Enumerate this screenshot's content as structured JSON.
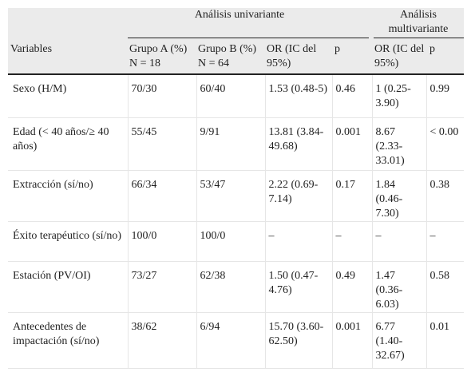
{
  "header": {
    "group_univariate": "Análisis univariante",
    "group_multivariate": "Análisis multivariante",
    "col_variables": "Variables",
    "col_grupo_a": "Grupo A (%) N = 18",
    "col_grupo_b": "Grupo B (%) N = 64",
    "col_or_uni": "OR (IC del 95%)",
    "col_p_uni": "p",
    "col_or_multi": "OR (IC del 95%)",
    "col_p_multi": "p"
  },
  "rows": [
    {
      "variable": "Sexo (H/M)",
      "grupo_a": "70/30",
      "grupo_b": "60/40",
      "or_uni": "1.53 (0.48-5)",
      "p_uni": "0.46",
      "or_multi": "1 (0.25-3.90)",
      "p_multi": "0.99"
    },
    {
      "variable": "Edad (< 40 años/≥ 40 años)",
      "grupo_a": "55/45",
      "grupo_b": "9/91",
      "or_uni": "13.81 (3.84-49.68)",
      "p_uni": "0.001",
      "or_multi": "8.67 (2.33-33.01)",
      "p_multi": "< 0.00"
    },
    {
      "variable": "Extracción (sí/no)",
      "grupo_a": "66/34",
      "grupo_b": "53/47",
      "or_uni": "2.22 (0.69-7.14)",
      "p_uni": "0.17",
      "or_multi": "1.84 (0.46-7.30)",
      "p_multi": "0.38"
    },
    {
      "variable": "Éxito terapéutico (sí/no)",
      "grupo_a": "100/0",
      "grupo_b": "100/0",
      "or_uni": "–",
      "p_uni": "–",
      "or_multi": "–",
      "p_multi": "–"
    },
    {
      "variable": "Estación (PV/OI)",
      "grupo_a": "73/27",
      "grupo_b": "62/38",
      "or_uni": "1.50 (0.47-4.76)",
      "p_uni": "0.49",
      "or_multi": "1.47 (0.36-6.03)",
      "p_multi": "0.58"
    },
    {
      "variable": "Antecedentes de impactación (sí/no)",
      "grupo_a": "38/62",
      "grupo_b": "6/94",
      "or_uni": "15.70 (3.60-62.50)",
      "p_uni": "0.001",
      "or_multi": "6.77 (1.40-32.67)",
      "p_multi": "0.01"
    }
  ]
}
